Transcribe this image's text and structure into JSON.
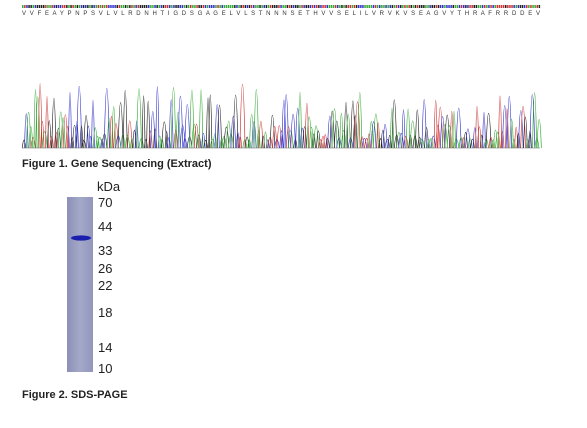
{
  "figure1": {
    "protein_sequence": "V V F E A Y P N P S V L V L R D N H T I G D S G A G E L V L S T N N N S E T H V V S E L I L V R V K V S E A G V Y T H R A F R R D D E V",
    "caption": "Figure 1. Gene Sequencing (Extract)"
  },
  "figure2": {
    "unit": "kDa",
    "markers": [
      70,
      44,
      33,
      26,
      22,
      18,
      14,
      10
    ],
    "caption": "Figure 2. SDS-PAGE"
  }
}
